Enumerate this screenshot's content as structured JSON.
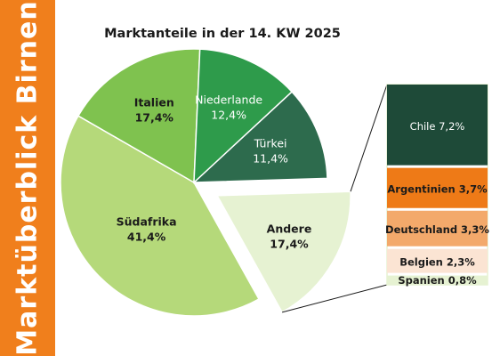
{
  "sidebar": {
    "title": "Marktüberblick Birnen"
  },
  "colors": {
    "sidebar": "#f07f1c",
    "suedafrika": "#b5d97a",
    "italien": "#7fc24f",
    "niederlande": "#2e9b4b",
    "tuerkei": "#2d6b4d",
    "andere": "#e6f2d2",
    "chile": "#1e4a38",
    "argentinien": "#ee7a17",
    "deutschland": "#f3a96b",
    "belgien": "#fbe4d3",
    "spanien": "#e6f2d2"
  },
  "chart_data": {
    "type": "pie",
    "title": "Marktanteile in der 14. KW 2025",
    "slices": [
      {
        "name": "Türkei",
        "value": 11.4,
        "label": "11,4%",
        "color_key": "tuerkei"
      },
      {
        "name": "Andere",
        "value": 17.4,
        "label": "17,4%",
        "color_key": "andere",
        "exploded": true
      },
      {
        "name": "Südafrika",
        "value": 41.4,
        "label": "41,4%",
        "color_key": "suedafrika"
      },
      {
        "name": "Italien",
        "value": 17.4,
        "label": "17,4%",
        "color_key": "italien"
      },
      {
        "name": "Niederlande",
        "value": 12.4,
        "label": "12,4%",
        "color_key": "niederlande"
      }
    ],
    "breakdown": {
      "of": "Andere",
      "type": "stacked-bar",
      "items": [
        {
          "name": "Chile",
          "value": 7.2,
          "label": "7,2%",
          "color_key": "chile"
        },
        {
          "name": "Argentinien",
          "value": 3.7,
          "label": "3,7%",
          "color_key": "argentinien"
        },
        {
          "name": "Deutschland",
          "value": 3.3,
          "label": "3,3%",
          "color_key": "deutschland"
        },
        {
          "name": "Belgien",
          "value": 2.3,
          "label": "2,3%",
          "color_key": "belgien"
        },
        {
          "name": "Spanien",
          "value": 0.8,
          "label": "0,8%",
          "color_key": "spanien"
        }
      ]
    }
  }
}
